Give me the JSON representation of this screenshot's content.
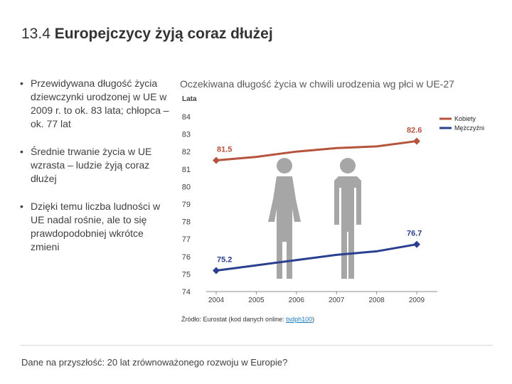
{
  "slide": {
    "title_number": "13.4",
    "title_text": "Europejczycy żyją coraz dłużej",
    "bullets": [
      "Przewidywana długość życia dziewczynki urodzonej w UE w 2009 r. to ok. 83 lata; chłopca – ok. 77 lat",
      "Średnie trwanie życia w UE wzrasta – ludzie żyją coraz dłużej",
      "Dzięki temu liczba ludności w UE nadal rośnie, ale to się prawdopodobniej wkrótce zmieni"
    ],
    "bullet_marker": "•",
    "source_prefix": "Źródło: Eurostat (kod danych online: ",
    "source_link": "tsdph100",
    "source_suffix": ")",
    "footer": "Dane na przyszłość: 20 lat zrównoważonego rozwoju w Europie?"
  },
  "chart_data": {
    "type": "line",
    "title": "Oczekiwana długość życia w chwili urodzenia wg płci w UE-27",
    "ylabel": "Lata",
    "x": [
      2004,
      2005,
      2006,
      2007,
      2008,
      2009
    ],
    "ylim": [
      74,
      84
    ],
    "yticks": [
      74,
      75,
      76,
      77,
      78,
      79,
      80,
      81,
      82,
      83,
      84
    ],
    "grid": false,
    "legend_position": "top-right",
    "series": [
      {
        "name": "Kobiety",
        "color": "#b5533c",
        "values": [
          81.5,
          81.7,
          82.0,
          82.2,
          82.3,
          82.6
        ],
        "start_label": "81.5",
        "end_label": "82.6"
      },
      {
        "name": "Mężczyźni",
        "color": "#2a3f8f",
        "values": [
          75.2,
          75.5,
          75.8,
          76.1,
          76.3,
          76.7
        ],
        "start_label": "75.2",
        "end_label": "76.7"
      }
    ],
    "icons": [
      "female-figure-icon",
      "male-figure-icon"
    ]
  }
}
